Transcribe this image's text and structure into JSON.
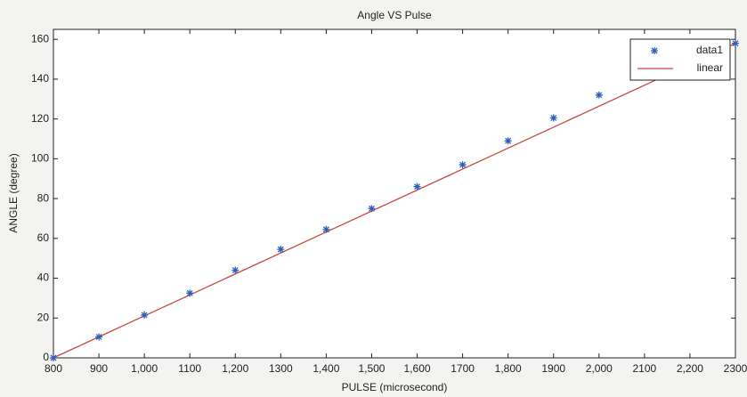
{
  "chart_data": {
    "type": "scatter-line",
    "title": "Angle VS Pulse",
    "x_label": "PULSE (microsecond)",
    "y_label": "ANGLE (degree)",
    "xlim": [
      800,
      2300
    ],
    "ylim": [
      0,
      165
    ],
    "xticks": [
      800,
      900,
      {
        "value": 1000,
        "label": "1,000"
      },
      1100,
      {
        "value": 1200,
        "label": "1,200"
      },
      1300,
      {
        "value": 1400,
        "label": "1,400"
      },
      {
        "value": 1500,
        "label": "1,500"
      },
      {
        "value": 1600,
        "label": "1,600"
      },
      1700,
      {
        "value": 1800,
        "label": "1,800"
      },
      1900,
      {
        "value": 2000,
        "label": "2,000"
      },
      2100,
      {
        "value": 2200,
        "label": "2,200"
      },
      2300
    ],
    "yticks": [
      0,
      20,
      40,
      60,
      80,
      100,
      120,
      140,
      160
    ],
    "grid": false,
    "legend": "upper right",
    "series": [
      {
        "name": "data1",
        "type": "scatter",
        "color": "#2d5fb8",
        "x": [
          800,
          900,
          1000,
          1100,
          1200,
          1300,
          1400,
          1500,
          1600,
          1700,
          1800,
          1900,
          2000,
          2300
        ],
        "values": [
          0,
          10.5,
          21.5,
          32.5,
          44,
          54.5,
          64.5,
          75,
          86,
          97,
          109,
          120.5,
          132,
          158
        ]
      },
      {
        "name": "linear",
        "type": "line",
        "color": "#c8473a",
        "x": [
          800,
          2300
        ],
        "values": [
          0,
          158
        ]
      }
    ]
  }
}
